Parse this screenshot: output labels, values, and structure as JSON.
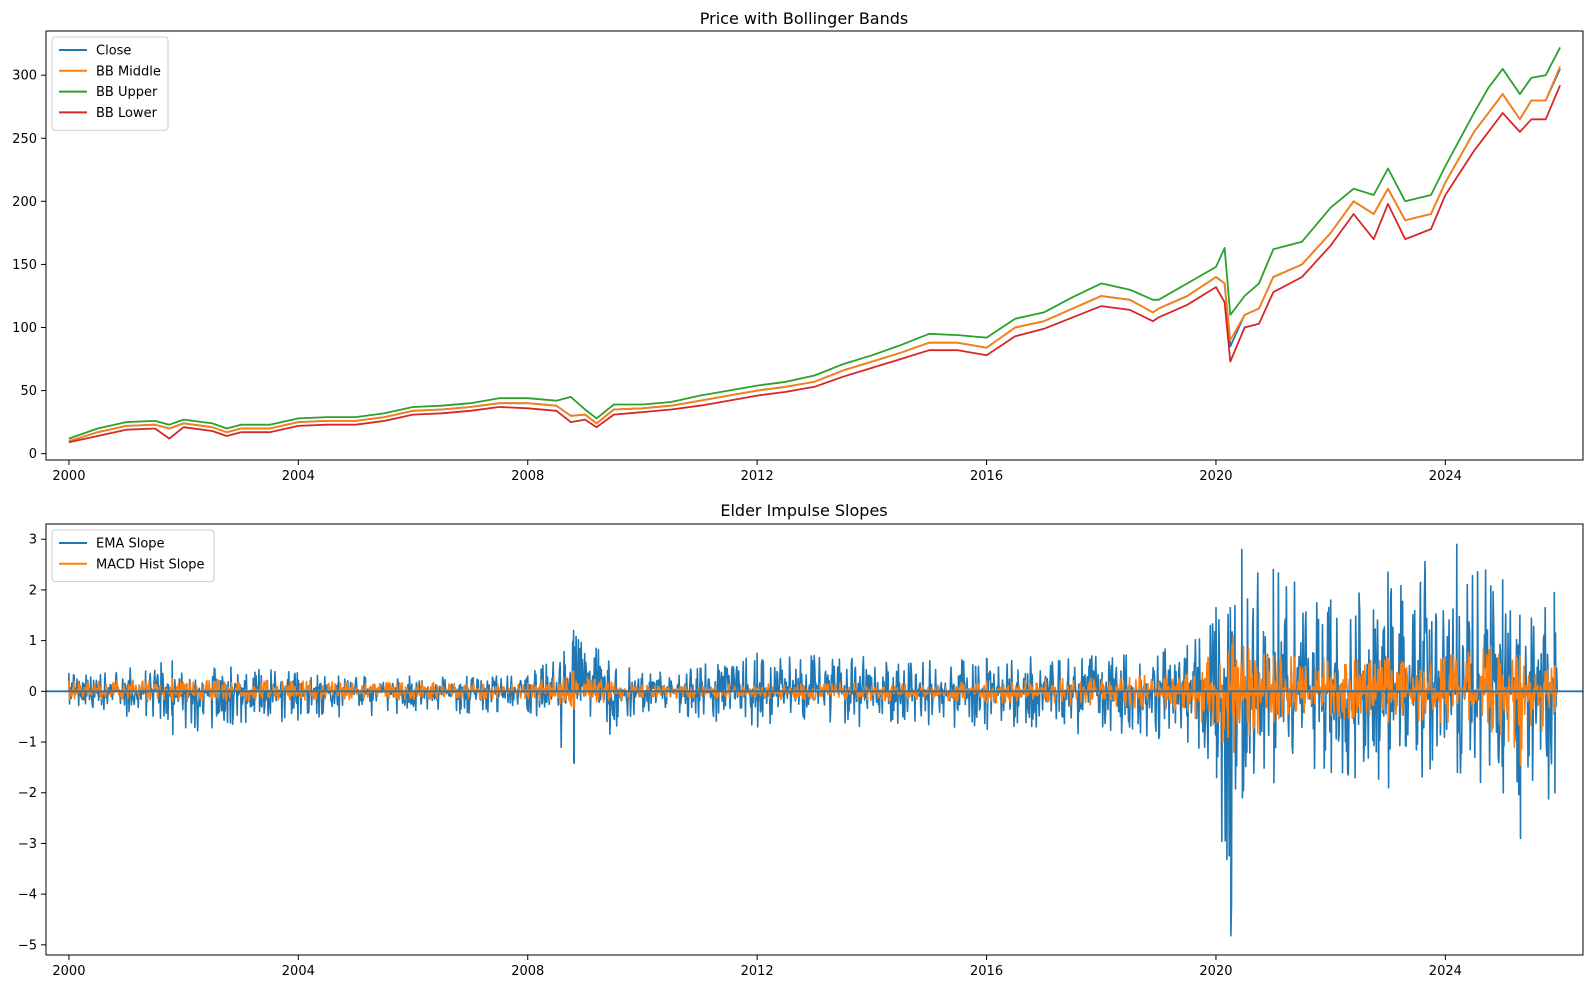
{
  "chart_data": [
    {
      "type": "line",
      "title": "Price with Bollinger Bands",
      "xlabel": "",
      "ylabel": "",
      "xlim": [
        1999.6,
        2026.4
      ],
      "ylim": [
        -5,
        335
      ],
      "xticks": [
        2000,
        2004,
        2008,
        2012,
        2016,
        2020,
        2024
      ],
      "xtick_labels": [
        "2000",
        "2004",
        "2008",
        "2012",
        "2016",
        "2020",
        "2024"
      ],
      "yticks": [
        0,
        50,
        100,
        150,
        200,
        250,
        300
      ],
      "ytick_labels": [
        "0",
        "50",
        "100",
        "150",
        "200",
        "250",
        "300"
      ],
      "grid": false,
      "legend_position": "upper-left",
      "x": [
        2000.0,
        2000.5,
        2001.0,
        2001.5,
        2001.75,
        2002.0,
        2002.5,
        2002.75,
        2003.0,
        2003.5,
        2004.0,
        2004.5,
        2005.0,
        2005.5,
        2006.0,
        2006.5,
        2007.0,
        2007.5,
        2008.0,
        2008.5,
        2008.75,
        2009.0,
        2009.2,
        2009.5,
        2010.0,
        2010.5,
        2011.0,
        2011.5,
        2012.0,
        2012.5,
        2013.0,
        2013.5,
        2014.0,
        2014.5,
        2015.0,
        2015.5,
        2016.0,
        2016.5,
        2017.0,
        2017.5,
        2018.0,
        2018.5,
        2018.9,
        2019.0,
        2019.5,
        2020.0,
        2020.15,
        2020.25,
        2020.5,
        2020.75,
        2021.0,
        2021.5,
        2022.0,
        2022.4,
        2022.75,
        2023.0,
        2023.3,
        2023.75,
        2024.0,
        2024.5,
        2024.75,
        2025.0,
        2025.3,
        2025.5,
        2025.75,
        2026.0
      ],
      "series": [
        {
          "name": "Close",
          "color": "#1f77b4",
          "values": [
            10,
            17,
            22,
            23,
            20,
            24,
            21,
            17,
            20,
            20,
            25,
            26,
            26,
            29,
            34,
            35,
            37,
            40,
            40,
            38,
            30,
            31,
            24,
            35,
            36,
            38,
            42,
            46,
            50,
            53,
            57,
            66,
            73,
            80,
            88,
            88,
            84,
            100,
            105,
            115,
            125,
            122,
            112,
            115,
            125,
            140,
            135,
            85,
            110,
            115,
            140,
            150,
            175,
            200,
            190,
            210,
            185,
            190,
            215,
            255,
            270,
            285,
            265,
            280,
            280,
            305
          ]
        },
        {
          "name": "BB Middle",
          "color": "#ff7f0e",
          "values": [
            10,
            17,
            22,
            23,
            20,
            24,
            21,
            17,
            20,
            20,
            25,
            26,
            26,
            29,
            34,
            35,
            37,
            40,
            40,
            38,
            30,
            31,
            24,
            35,
            36,
            38,
            42,
            46,
            50,
            53,
            57,
            66,
            73,
            80,
            88,
            88,
            84,
            100,
            105,
            115,
            125,
            122,
            112,
            115,
            125,
            140,
            135,
            90,
            110,
            115,
            140,
            150,
            175,
            200,
            190,
            210,
            185,
            190,
            215,
            255,
            270,
            285,
            265,
            280,
            280,
            307
          ]
        },
        {
          "name": "BB Upper",
          "color": "#2ca02c",
          "values": [
            12,
            20,
            25,
            26,
            23,
            27,
            24,
            20,
            23,
            23,
            28,
            29,
            29,
            32,
            37,
            38,
            40,
            44,
            44,
            42,
            45,
            35,
            28,
            39,
            39,
            41,
            46,
            50,
            54,
            57,
            62,
            71,
            78,
            86,
            95,
            94,
            92,
            107,
            112,
            124,
            135,
            130,
            122,
            122,
            135,
            148,
            163,
            110,
            125,
            135,
            162,
            168,
            195,
            210,
            205,
            226,
            200,
            205,
            228,
            270,
            290,
            305,
            285,
            298,
            300,
            322
          ]
        },
        {
          "name": "BB Lower",
          "color": "#d62728",
          "values": [
            9,
            14,
            19,
            20,
            12,
            21,
            18,
            14,
            17,
            17,
            22,
            23,
            23,
            26,
            31,
            32,
            34,
            37,
            36,
            34,
            25,
            27,
            21,
            31,
            33,
            35,
            38,
            42,
            46,
            49,
            53,
            61,
            68,
            75,
            82,
            82,
            78,
            93,
            99,
            108,
            117,
            114,
            105,
            108,
            118,
            132,
            120,
            73,
            100,
            103,
            128,
            140,
            165,
            190,
            170,
            198,
            170,
            178,
            205,
            240,
            255,
            270,
            255,
            265,
            265,
            292
          ]
        }
      ]
    },
    {
      "type": "line",
      "title": "Elder Impulse Slopes",
      "xlabel": "",
      "ylabel": "",
      "xlim": [
        1999.6,
        2026.4
      ],
      "ylim": [
        -5.2,
        3.3
      ],
      "xticks": [
        2000,
        2004,
        2008,
        2012,
        2016,
        2020,
        2024
      ],
      "xtick_labels": [
        "2000",
        "2004",
        "2008",
        "2012",
        "2016",
        "2020",
        "2024"
      ],
      "yticks": [
        -5,
        -4,
        -3,
        -2,
        -1,
        0,
        1,
        2,
        3
      ],
      "ytick_labels": [
        "−5",
        "−4",
        "−3",
        "−2",
        "−1",
        "0",
        "1",
        "2",
        "3"
      ],
      "grid": false,
      "legend_position": "upper-left",
      "reference_line": {
        "y": 0,
        "color": "#1f77b4"
      },
      "x_range": [
        2000.0,
        2025.95
      ],
      "series": [
        {
          "name": "EMA Slope",
          "color": "#1f77b4",
          "envelope": [
            {
              "x": 2000.0,
              "max": 0.35,
              "min": -0.25
            },
            {
              "x": 2001.8,
              "max": 0.6,
              "min": -0.85
            },
            {
              "x": 2004.7,
              "max": 0.3,
              "min": -0.5
            },
            {
              "x": 2008.0,
              "max": 0.3,
              "min": -0.4
            },
            {
              "x": 2008.8,
              "max": 1.2,
              "min": -1.42
            },
            {
              "x": 2010.0,
              "max": 0.35,
              "min": -0.4
            },
            {
              "x": 2012.0,
              "max": 0.75,
              "min": -0.7
            },
            {
              "x": 2016.0,
              "max": 0.65,
              "min": -0.75
            },
            {
              "x": 2019.5,
              "max": 0.9,
              "min": -1.0
            },
            {
              "x": 2020.0,
              "max": 1.65,
              "min": -1.7
            },
            {
              "x": 2020.25,
              "max": 1.65,
              "min": -4.82
            },
            {
              "x": 2020.45,
              "max": 2.8,
              "min": -2.1
            },
            {
              "x": 2021.0,
              "max": 2.4,
              "min": -1.8
            },
            {
              "x": 2022.0,
              "max": 1.8,
              "min": -1.6
            },
            {
              "x": 2023.0,
              "max": 2.35,
              "min": -1.9
            },
            {
              "x": 2024.2,
              "max": 2.9,
              "min": -1.6
            },
            {
              "x": 2025.0,
              "max": 2.2,
              "min": -2.0
            },
            {
              "x": 2025.3,
              "max": 1.5,
              "min": -2.9
            },
            {
              "x": 2025.9,
              "max": 1.95,
              "min": -2.0
            }
          ]
        },
        {
          "name": "MACD Hist Slope",
          "color": "#ff7f0e",
          "envelope": [
            {
              "x": 2000.0,
              "max": 0.2,
              "min": -0.15
            },
            {
              "x": 2001.8,
              "max": 0.25,
              "min": -0.2
            },
            {
              "x": 2008.0,
              "max": 0.15,
              "min": -0.15
            },
            {
              "x": 2008.8,
              "max": 0.4,
              "min": -0.35
            },
            {
              "x": 2010.0,
              "max": 0.12,
              "min": -0.12
            },
            {
              "x": 2016.0,
              "max": 0.2,
              "min": -0.22
            },
            {
              "x": 2019.5,
              "max": 0.35,
              "min": -0.4
            },
            {
              "x": 2020.3,
              "max": 1.1,
              "min": -1.2
            },
            {
              "x": 2021.0,
              "max": 0.7,
              "min": -0.6
            },
            {
              "x": 2023.0,
              "max": 0.65,
              "min": -0.6
            },
            {
              "x": 2024.8,
              "max": 0.9,
              "min": -0.8
            },
            {
              "x": 2025.3,
              "max": 0.7,
              "min": -1.45
            },
            {
              "x": 2025.9,
              "max": 0.5,
              "min": -0.4
            }
          ]
        }
      ]
    }
  ]
}
